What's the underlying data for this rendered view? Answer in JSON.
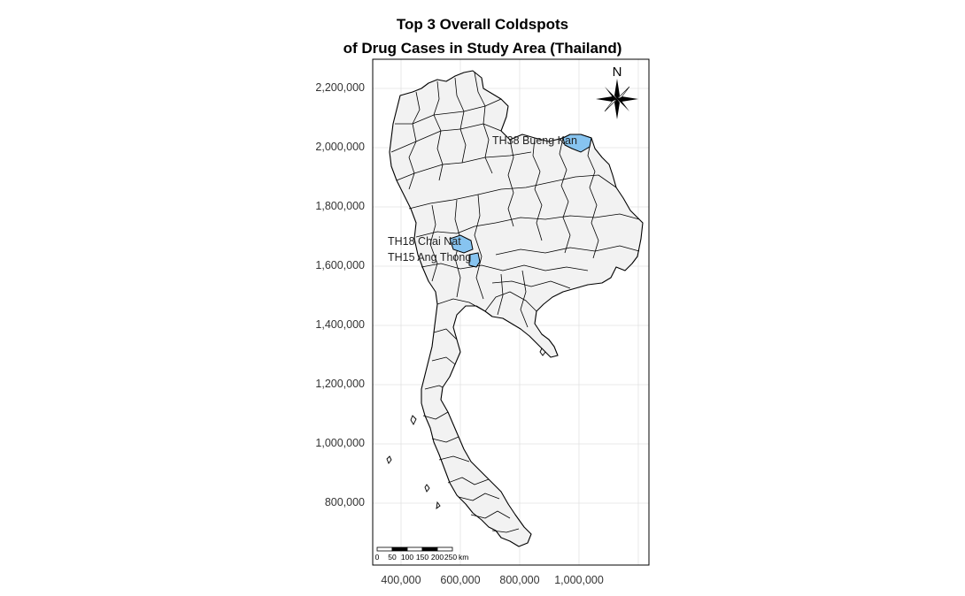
{
  "title": {
    "line1": "Top 3 Overall Coldspots",
    "line2": "of Drug Cases in Study Area (Thailand)"
  },
  "axes": {
    "y_ticks": [
      "2,200,000",
      "2,000,000",
      "1,800,000",
      "1,600,000",
      "1,400,000",
      "1,200,000",
      "1,000,000",
      "800,000"
    ],
    "x_ticks": [
      "400,000",
      "600,000",
      "800,000",
      "1,000,000"
    ],
    "grid": true
  },
  "coldspots": [
    {
      "code": "TH38",
      "name": "Bueng Kan",
      "label": "TH38 Bueng Kan"
    },
    {
      "code": "TH18",
      "name": "Chai Nat",
      "label": "TH18 Chai Nat"
    },
    {
      "code": "TH15",
      "name": "Ang Thong",
      "label": "TH15 Ang Thong"
    }
  ],
  "scale_bar": {
    "ticks": [
      "0",
      "50",
      "100",
      "150",
      "200",
      "250"
    ],
    "unit": "km"
  },
  "north_arrow": {
    "label": "N"
  },
  "colors": {
    "province_fill": "#f2f2f2",
    "coldspot_fill": "#87c4f0",
    "border": "#000000",
    "grid": "#e2e2e2"
  }
}
